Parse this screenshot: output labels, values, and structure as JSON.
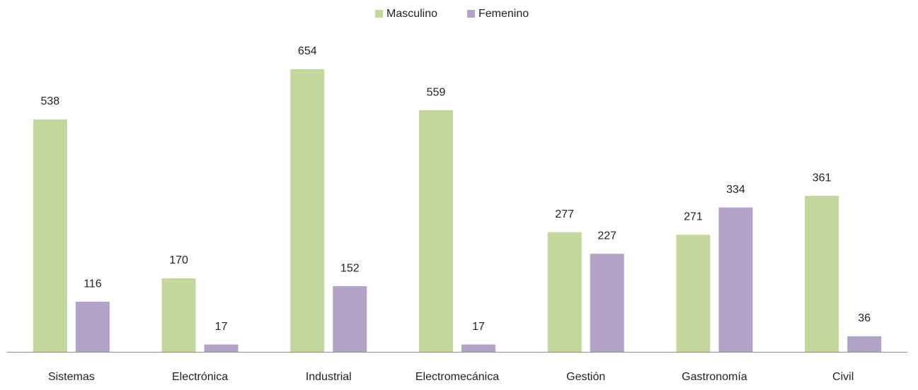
{
  "chart_data": {
    "type": "bar",
    "categories": [
      "Sistemas",
      "Electrónica",
      "Industrial",
      "Electromecánica",
      "Gestión",
      "Gastronomía",
      "Civil"
    ],
    "series": [
      {
        "name": "Masculino",
        "color": "#c3d69b",
        "values": [
          538,
          170,
          654,
          559,
          277,
          271,
          361
        ]
      },
      {
        "name": "Femenino",
        "color": "#b3a2c7",
        "values": [
          116,
          17,
          152,
          17,
          227,
          334,
          36
        ]
      }
    ],
    "legend": "top",
    "grid": false
  }
}
